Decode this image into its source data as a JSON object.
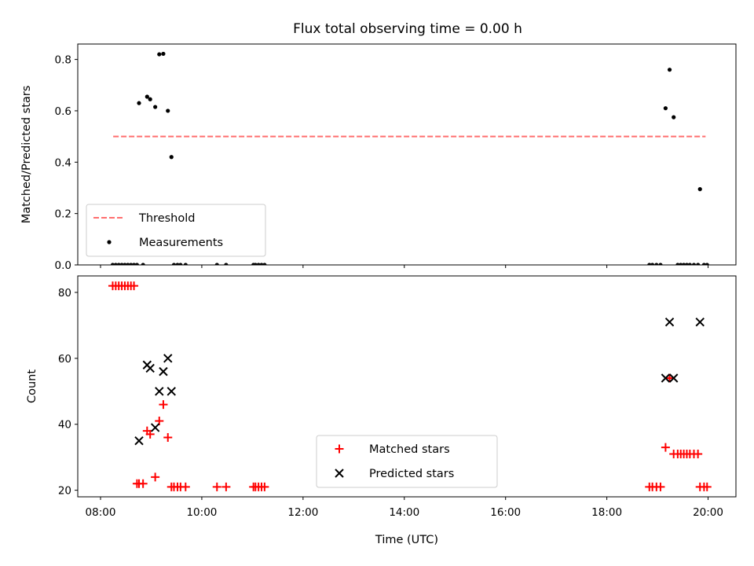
{
  "chart_data": {
    "title": "Flux total observing time = 0.00 h",
    "xlabel": "Time (UTC)",
    "x_tick_labels": [
      "08:00",
      "10:00",
      "12:00",
      "14:00",
      "16:00",
      "18:00",
      "20:00"
    ],
    "x_tick_hours": [
      8,
      10,
      12,
      14,
      16,
      18,
      20
    ],
    "xlim": [
      7.55,
      20.55
    ],
    "panels": [
      {
        "type": "scatter",
        "ylabel": "Matched/Predicted stars",
        "ylim": [
          0,
          0.86
        ],
        "y_ticks": [
          0.0,
          0.2,
          0.4,
          0.6,
          0.8
        ],
        "y_tick_labels": [
          "0.0",
          "0.2",
          "0.4",
          "0.6",
          "0.8"
        ],
        "grid": false,
        "legend_position": "lower-left",
        "threshold": {
          "name": "Threshold",
          "value": 0.5,
          "x_range": [
            8.25,
            19.95
          ],
          "color": "#ff6f6f",
          "style": "dashed"
        },
        "series": [
          {
            "name": "Measurements",
            "color": "#000000",
            "marker": "dot",
            "x": [
              8.24,
              8.3,
              8.36,
              8.42,
              8.48,
              8.54,
              8.6,
              8.66,
              8.72,
              8.76,
              8.84,
              8.92,
              8.98,
              9.08,
              9.16,
              9.24,
              9.33,
              9.4,
              9.45,
              9.52,
              9.58,
              9.68,
              10.3,
              10.48,
              11.02,
              11.06,
              11.12,
              11.18,
              11.24,
              18.84,
              18.9,
              18.98,
              19.06,
              19.16,
              19.24,
              19.32,
              19.4,
              19.46,
              19.52,
              19.58,
              19.64,
              19.72,
              19.8,
              19.84,
              19.92,
              19.98
            ],
            "y": [
              0,
              0,
              0,
              0,
              0,
              0,
              0,
              0,
              0,
              0.63,
              0,
              0.655,
              0.645,
              0.615,
              0.82,
              0.822,
              0.6,
              0.42,
              0,
              0,
              0,
              0,
              0,
              0,
              0,
              0,
              0,
              0,
              0,
              0,
              0,
              0,
              0,
              0.61,
              0.76,
              0.575,
              0,
              0,
              0,
              0,
              0,
              0,
              0,
              0.295,
              0,
              0
            ]
          }
        ]
      },
      {
        "type": "scatter",
        "ylabel": "Count",
        "ylim": [
          18,
          85
        ],
        "y_ticks": [
          20,
          40,
          60,
          80
        ],
        "y_tick_labels": [
          "20",
          "40",
          "60",
          "80"
        ],
        "grid": false,
        "legend_position": "lower-center",
        "series": [
          {
            "name": "Matched stars",
            "color": "#ff0000",
            "marker": "plus",
            "x": [
              8.24,
              8.3,
              8.36,
              8.42,
              8.48,
              8.54,
              8.6,
              8.66,
              8.72,
              8.76,
              8.84,
              8.92,
              8.98,
              9.08,
              9.16,
              9.24,
              9.33,
              9.4,
              9.45,
              9.52,
              9.58,
              9.68,
              10.3,
              10.48,
              11.02,
              11.06,
              11.12,
              11.18,
              11.24,
              18.84,
              18.9,
              18.98,
              19.06,
              19.16,
              19.24,
              19.32,
              19.4,
              19.46,
              19.52,
              19.58,
              19.64,
              19.72,
              19.8,
              19.84,
              19.92,
              19.98
            ],
            "y": [
              82,
              82,
              82,
              82,
              82,
              82,
              82,
              82,
              22,
              22,
              22,
              38,
              37,
              24,
              41,
              46,
              36,
              21,
              21,
              21,
              21,
              21,
              21,
              21,
              21,
              21,
              21,
              21,
              21,
              21,
              21,
              21,
              21,
              33,
              54,
              31,
              31,
              31,
              31,
              31,
              31,
              31,
              31,
              21,
              21,
              21
            ]
          },
          {
            "name": "Predicted stars",
            "color": "#000000",
            "marker": "x",
            "x": [
              8.76,
              8.92,
              8.98,
              9.08,
              9.16,
              9.24,
              9.33,
              9.4,
              19.16,
              19.24,
              19.32,
              19.84
            ],
            "y": [
              35,
              58,
              57,
              39,
              50,
              56,
              60,
              50,
              54,
              71,
              54,
              71
            ]
          }
        ]
      }
    ]
  }
}
